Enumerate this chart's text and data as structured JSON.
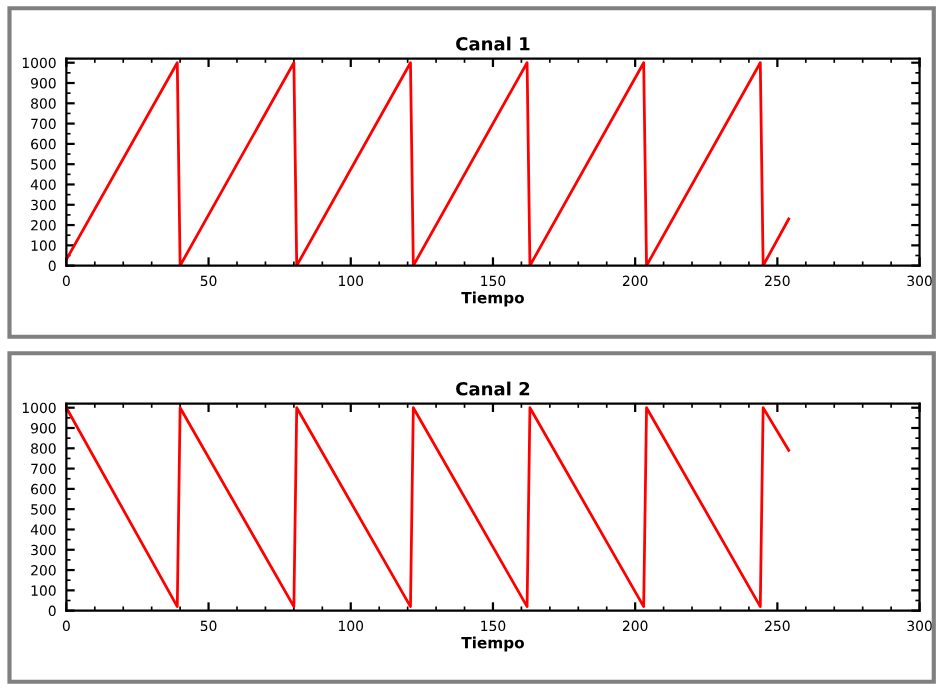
{
  "chart_data": [
    {
      "type": "line",
      "title": "Canal 1",
      "xlabel": "Tiempo",
      "xlim": [
        0,
        300
      ],
      "xticks": [
        0,
        50,
        100,
        150,
        200,
        250,
        300
      ],
      "ylim": [
        0,
        1020
      ],
      "yticks": [
        0,
        100,
        200,
        300,
        400,
        500,
        600,
        700,
        800,
        900,
        1000
      ],
      "grid": false,
      "legend": false,
      "series": [
        {
          "color": "#ff0000",
          "x": [
            0,
            39,
            40,
            80,
            81,
            121,
            122,
            162,
            163,
            203,
            204,
            244,
            245,
            254
          ],
          "values": [
            30,
            1000,
            0,
            1000,
            0,
            1000,
            0,
            1000,
            0,
            1000,
            0,
            1000,
            0,
            230
          ]
        }
      ]
    },
    {
      "type": "line",
      "title": "Canal 2",
      "xlabel": "Tiempo",
      "xlim": [
        0,
        300
      ],
      "xticks": [
        0,
        50,
        100,
        150,
        200,
        250,
        300
      ],
      "ylim": [
        0,
        1020
      ],
      "yticks": [
        0,
        100,
        200,
        300,
        400,
        500,
        600,
        700,
        800,
        900,
        1000
      ],
      "grid": false,
      "legend": false,
      "series": [
        {
          "color": "#ff0000",
          "x": [
            0,
            39,
            40,
            80,
            81,
            121,
            122,
            162,
            163,
            203,
            204,
            244,
            245,
            254
          ],
          "values": [
            1000,
            20,
            1000,
            20,
            1000,
            20,
            1000,
            20,
            1000,
            20,
            1000,
            20,
            1000,
            790
          ]
        }
      ]
    }
  ]
}
